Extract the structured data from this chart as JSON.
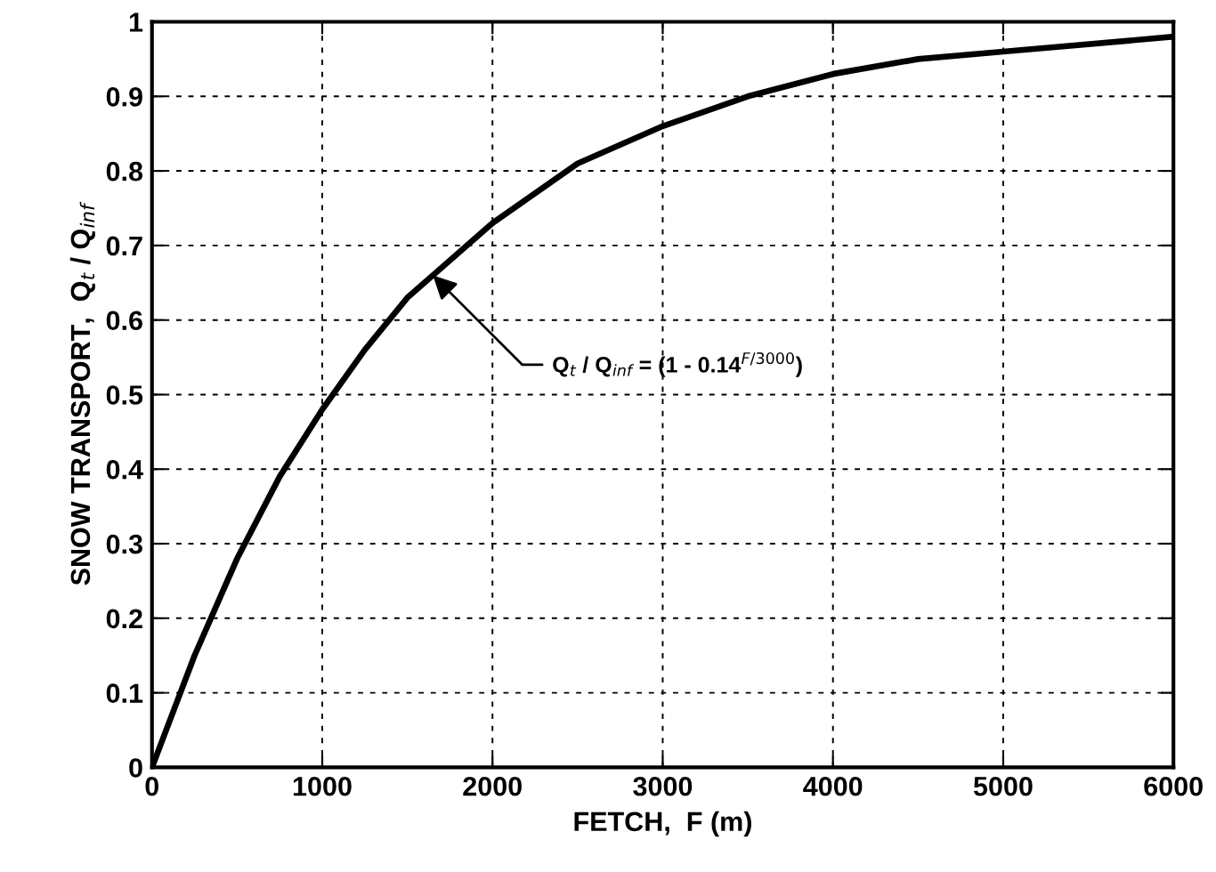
{
  "chart_data": {
    "type": "line",
    "xlabel": "FETCH,  F (m)",
    "ylabel": "SNOW TRANSPORT,  Q$_{t}$ / Q$_{inf}$",
    "x": [
      0,
      100,
      250,
      500,
      750,
      1000,
      1250,
      1500,
      2000,
      2500,
      3000,
      3500,
      4000,
      4500,
      5000,
      6000
    ],
    "series": [
      {
        "color": "#000000",
        "values": [
          0,
          0.06,
          0.15,
          0.28,
          0.39,
          0.48,
          0.56,
          0.63,
          0.73,
          0.81,
          0.86,
          0.9,
          0.93,
          0.95,
          0.96,
          0.98
        ]
      }
    ],
    "xlim": [
      0,
      6000
    ],
    "ylim": [
      0,
      1
    ],
    "xticks": [
      0,
      1000,
      2000,
      3000,
      4000,
      5000,
      6000
    ],
    "yticks": [
      0,
      0.1,
      0.2,
      0.3,
      0.4,
      0.5,
      0.6,
      0.7,
      0.8,
      0.9,
      1
    ],
    "grid": true,
    "line_style": "solid",
    "marker": "none",
    "annotations": [
      {
        "text": "Q$_{t}$ / Q$_{inf}$ = (1 - 0.14$^{F/3000}$)",
        "x": 1650,
        "y": 0.66
      }
    ]
  }
}
